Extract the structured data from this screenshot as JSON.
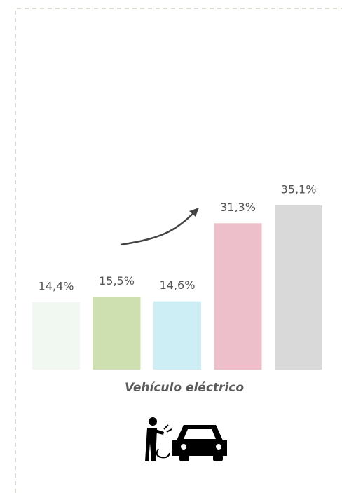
{
  "chart_data": {
    "type": "bar",
    "x_label": "Vehículo eléctrico",
    "categories": [
      null,
      null,
      null,
      null,
      null
    ],
    "values": [
      14.4,
      15.5,
      14.6,
      31.3,
      35.1
    ],
    "value_labels": [
      "14,4%",
      "15,5%",
      "14,6%",
      "31,3%",
      "35,1%"
    ],
    "colors": [
      "#f1f7f1",
      "#cfe0b0",
      "#cdeef5",
      "#ecbfca",
      "#d9d9d9"
    ]
  }
}
